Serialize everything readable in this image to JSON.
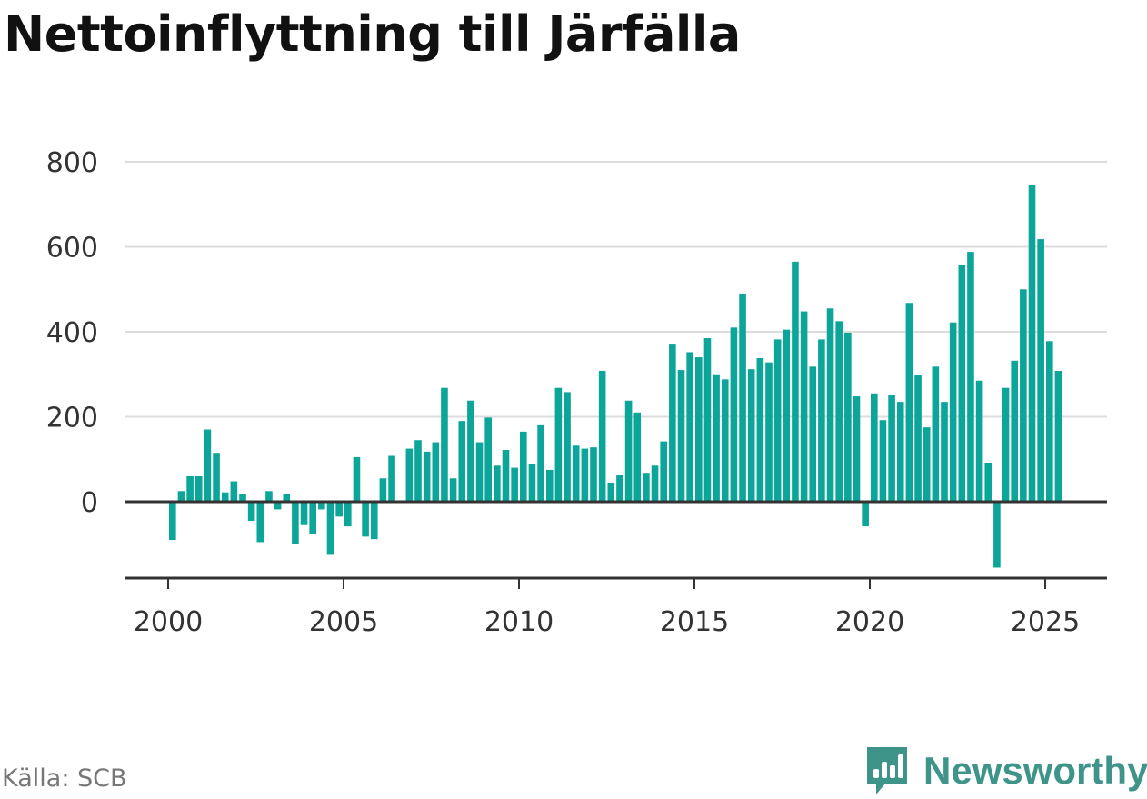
{
  "title": "Nettoinflyttning till Järfälla",
  "source": "Källa: SCB",
  "brand": {
    "name": "Newsworthy",
    "icon": "newsworthy-logo-icon"
  },
  "colors": {
    "bar": "#0ba59a",
    "grid": "#dddddd",
    "axis": "#333333",
    "brand": "#3f948a"
  },
  "chart_data": {
    "type": "bar",
    "title": "Nettoinflyttning till Järfälla",
    "xlabel": "",
    "ylabel": "",
    "ylim": [
      -170,
      830
    ],
    "xlim": [
      1999.5,
      2026.5
    ],
    "grid": true,
    "legend": "none",
    "y_ticks": [
      0,
      200,
      400,
      600,
      800
    ],
    "x_ticks": [
      2000,
      2005,
      2010,
      2015,
      2020,
      2025
    ],
    "series": [
      {
        "points": [
          {
            "x": "2000-Q1",
            "y": -90
          },
          {
            "x": "2000-Q2",
            "y": 25
          },
          {
            "x": "2000-Q3",
            "y": 60
          },
          {
            "x": "2000-Q4",
            "y": 60
          },
          {
            "x": "2001-Q1",
            "y": 170
          },
          {
            "x": "2001-Q2",
            "y": 115
          },
          {
            "x": "2001-Q3",
            "y": 22
          },
          {
            "x": "2001-Q4",
            "y": 48
          },
          {
            "x": "2002-Q1",
            "y": 18
          },
          {
            "x": "2002-Q2",
            "y": -45
          },
          {
            "x": "2002-Q3",
            "y": -95
          },
          {
            "x": "2002-Q4",
            "y": 25
          },
          {
            "x": "2003-Q1",
            "y": -18
          },
          {
            "x": "2003-Q2",
            "y": 18
          },
          {
            "x": "2003-Q3",
            "y": -100
          },
          {
            "x": "2003-Q4",
            "y": -55
          },
          {
            "x": "2004-Q1",
            "y": -75
          },
          {
            "x": "2004-Q2",
            "y": -18
          },
          {
            "x": "2004-Q3",
            "y": -125
          },
          {
            "x": "2004-Q4",
            "y": -35
          },
          {
            "x": "2005-Q1",
            "y": -58
          },
          {
            "x": "2005-Q2",
            "y": 105
          },
          {
            "x": "2005-Q3",
            "y": -82
          },
          {
            "x": "2005-Q4",
            "y": -88
          },
          {
            "x": "2006-Q1",
            "y": 55
          },
          {
            "x": "2006-Q2",
            "y": 108
          },
          {
            "x": "2006-Q3",
            "y": 0
          },
          {
            "x": "2006-Q4",
            "y": 125
          },
          {
            "x": "2007-Q1",
            "y": 145
          },
          {
            "x": "2007-Q2",
            "y": 118
          },
          {
            "x": "2007-Q3",
            "y": 140
          },
          {
            "x": "2007-Q4",
            "y": 268
          },
          {
            "x": "2008-Q1",
            "y": 55
          },
          {
            "x": "2008-Q2",
            "y": 190
          },
          {
            "x": "2008-Q3",
            "y": 238
          },
          {
            "x": "2008-Q4",
            "y": 140
          },
          {
            "x": "2009-Q1",
            "y": 198
          },
          {
            "x": "2009-Q2",
            "y": 85
          },
          {
            "x": "2009-Q3",
            "y": 122
          },
          {
            "x": "2009-Q4",
            "y": 80
          },
          {
            "x": "2010-Q1",
            "y": 165
          },
          {
            "x": "2010-Q2",
            "y": 88
          },
          {
            "x": "2010-Q3",
            "y": 180
          },
          {
            "x": "2010-Q4",
            "y": 75
          },
          {
            "x": "2011-Q1",
            "y": 268
          },
          {
            "x": "2011-Q2",
            "y": 258
          },
          {
            "x": "2011-Q3",
            "y": 132
          },
          {
            "x": "2011-Q4",
            "y": 125
          },
          {
            "x": "2012-Q1",
            "y": 128
          },
          {
            "x": "2012-Q2",
            "y": 308
          },
          {
            "x": "2012-Q3",
            "y": 45
          },
          {
            "x": "2012-Q4",
            "y": 62
          },
          {
            "x": "2013-Q1",
            "y": 238
          },
          {
            "x": "2013-Q2",
            "y": 210
          },
          {
            "x": "2013-Q3",
            "y": 68
          },
          {
            "x": "2013-Q4",
            "y": 85
          },
          {
            "x": "2014-Q1",
            "y": 142
          },
          {
            "x": "2014-Q2",
            "y": 372
          },
          {
            "x": "2014-Q3",
            "y": 310
          },
          {
            "x": "2014-Q4",
            "y": 352
          },
          {
            "x": "2015-Q1",
            "y": 340
          },
          {
            "x": "2015-Q2",
            "y": 385
          },
          {
            "x": "2015-Q3",
            "y": 300
          },
          {
            "x": "2015-Q4",
            "y": 288
          },
          {
            "x": "2016-Q1",
            "y": 410
          },
          {
            "x": "2016-Q2",
            "y": 490
          },
          {
            "x": "2016-Q3",
            "y": 312
          },
          {
            "x": "2016-Q4",
            "y": 338
          },
          {
            "x": "2017-Q1",
            "y": 328
          },
          {
            "x": "2017-Q2",
            "y": 382
          },
          {
            "x": "2017-Q3",
            "y": 405
          },
          {
            "x": "2017-Q4",
            "y": 565
          },
          {
            "x": "2018-Q1",
            "y": 448
          },
          {
            "x": "2018-Q2",
            "y": 318
          },
          {
            "x": "2018-Q3",
            "y": 382
          },
          {
            "x": "2018-Q4",
            "y": 455
          },
          {
            "x": "2019-Q1",
            "y": 425
          },
          {
            "x": "2019-Q2",
            "y": 398
          },
          {
            "x": "2019-Q3",
            "y": 248
          },
          {
            "x": "2019-Q4",
            "y": -58
          },
          {
            "x": "2020-Q1",
            "y": 255
          },
          {
            "x": "2020-Q2",
            "y": 192
          },
          {
            "x": "2020-Q3",
            "y": 252
          },
          {
            "x": "2020-Q4",
            "y": 235
          },
          {
            "x": "2021-Q1",
            "y": 468
          },
          {
            "x": "2021-Q2",
            "y": 298
          },
          {
            "x": "2021-Q3",
            "y": 175
          },
          {
            "x": "2021-Q4",
            "y": 318
          },
          {
            "x": "2022-Q1",
            "y": 235
          },
          {
            "x": "2022-Q2",
            "y": 422
          },
          {
            "x": "2022-Q3",
            "y": 558
          },
          {
            "x": "2022-Q4",
            "y": 588
          },
          {
            "x": "2023-Q1",
            "y": 285
          },
          {
            "x": "2023-Q2",
            "y": 92
          },
          {
            "x": "2023-Q3",
            "y": -155
          },
          {
            "x": "2023-Q4",
            "y": 268
          },
          {
            "x": "2024-Q1",
            "y": 332
          },
          {
            "x": "2024-Q2",
            "y": 500
          },
          {
            "x": "2024-Q3",
            "y": 745
          },
          {
            "x": "2024-Q4",
            "y": 618
          },
          {
            "x": "2025-Q1",
            "y": 378
          },
          {
            "x": "2025-Q2",
            "y": 308
          }
        ]
      }
    ]
  }
}
